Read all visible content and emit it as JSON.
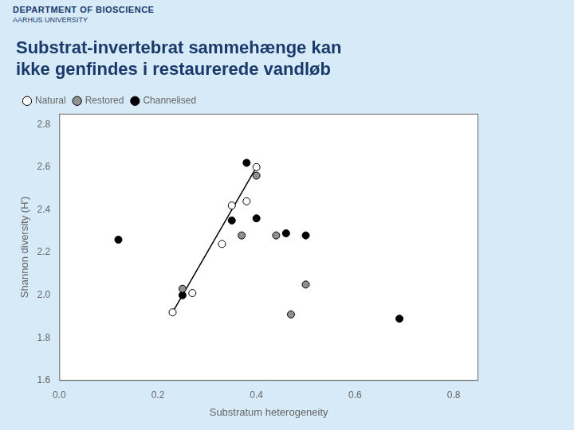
{
  "chart_data": {
    "type": "scatter",
    "title": "Substrat-invertebrat sammehænge kan\nikke genfindes i restaurerede vandløb",
    "annotations": [
      "DEPARTMENT OF BIOSCIENCE",
      "AARHUS UNIVERSITY"
    ],
    "x_label": "Substratum heterogeneity",
    "y_label": "Shannon diversity (H')",
    "xlim": [
      0.0,
      0.85
    ],
    "ylim": [
      1.6,
      2.85
    ],
    "xticks": [
      {
        "value": 0.0,
        "label": "0.0"
      },
      0.2,
      0.4,
      0.6,
      0.8
    ],
    "yticks": [
      1.6,
      1.8,
      {
        "value": 2.0,
        "label": "2.0"
      },
      2.2,
      2.4,
      2.6,
      2.8
    ],
    "grid": false,
    "legend": "upper left",
    "series": [
      {
        "name": "Natural",
        "type": "scatter",
        "marker": "circle",
        "color": "white",
        "x": [
          0.23,
          0.27,
          0.33,
          0.35,
          0.38,
          0.4
        ],
        "values": [
          1.92,
          2.01,
          2.24,
          2.42,
          2.44,
          2.6
        ]
      },
      {
        "name": "Restored",
        "type": "scatter",
        "marker": "circle",
        "color": "#909090",
        "x": [
          0.25,
          0.37,
          0.4,
          0.44,
          0.47,
          0.5
        ],
        "values": [
          2.03,
          2.28,
          2.56,
          2.28,
          1.91,
          2.05
        ]
      },
      {
        "name": "Channelised",
        "type": "scatter",
        "marker": "circle",
        "color": "black",
        "x": [
          0.12,
          0.25,
          0.35,
          0.38,
          0.4,
          0.46,
          0.5,
          0.69
        ],
        "values": [
          2.26,
          2.0,
          2.35,
          2.62,
          2.36,
          2.29,
          2.28,
          1.89
        ]
      },
      {
        "type": "line",
        "line_style": "solid",
        "color": "black",
        "x": [
          0.23,
          0.4
        ],
        "values": [
          1.92,
          2.6
        ]
      }
    ]
  }
}
